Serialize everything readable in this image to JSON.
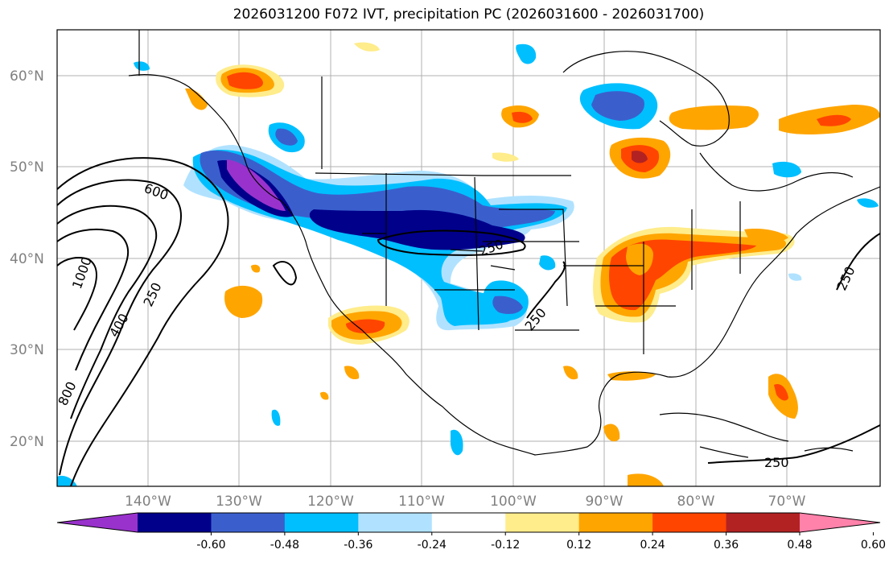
{
  "title": "2026031200 F072 IVT, precipitation PC (2026031600 - 2026031700)",
  "axes": {
    "lat_ticks": [
      "60°N",
      "50°N",
      "40°N",
      "30°N",
      "20°N"
    ],
    "lon_ticks": [
      "140°W",
      "130°W",
      "120°W",
      "110°W",
      "100°W",
      "90°W",
      "80°W",
      "70°W"
    ]
  },
  "contour_labels": [
    "600",
    "1000",
    "250",
    "400",
    "800",
    "250",
    "250",
    "250",
    "250"
  ],
  "colorbar": {
    "labels": [
      "-0.60",
      "-0.48",
      "-0.36",
      "-0.24",
      "-0.12",
      "0.12",
      "0.24",
      "0.36",
      "0.48",
      "0.60"
    ],
    "colors": [
      "#9932cc",
      "#00008b",
      "#3a5fcd",
      "#00bfff",
      "#b0e2ff",
      "#ffffff",
      "#ffec8b",
      "#ffa500",
      "#ff4500",
      "#b22222",
      "#ff82ab"
    ]
  },
  "colors": {
    "gridline": "#b0b0b0",
    "tick_text": "#808080"
  }
}
